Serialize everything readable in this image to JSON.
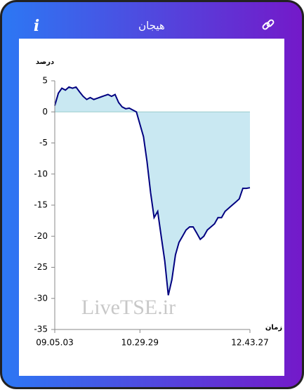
{
  "header": {
    "title": "هیجان",
    "info_icon": "i"
  },
  "chart_data": {
    "type": "area",
    "y_label": "درصد",
    "x_label": "زمان",
    "watermark": "LiveTSE.ir",
    "categories": [
      "09.05.03",
      null,
      null,
      null,
      null,
      null,
      null,
      null,
      null,
      null,
      null,
      null,
      null,
      null,
      null,
      null,
      null,
      null,
      null,
      null,
      null,
      null,
      null,
      null,
      "10.29.29",
      null,
      null,
      null,
      null,
      null,
      null,
      null,
      null,
      null,
      null,
      null,
      null,
      null,
      null,
      null,
      null,
      null,
      null,
      null,
      null,
      null,
      null,
      null,
      null,
      null,
      null,
      null,
      null,
      null,
      null,
      "12.43.27"
    ],
    "series": [
      {
        "color": "#000080",
        "fill": "#c9e8f2",
        "values": [
          1,
          3,
          3.8,
          3.5,
          4,
          3.8,
          4,
          3.2,
          2.5,
          2,
          2.3,
          2,
          2.2,
          2.4,
          2.6,
          2.8,
          2.5,
          2.8,
          1.5,
          0.8,
          0.5,
          0.6,
          0.3,
          0,
          -2,
          -4,
          -8,
          -13,
          -17,
          -16,
          -20,
          -24,
          -29.5,
          -27,
          -23,
          -21,
          -20,
          -19,
          -18.5,
          -18.5,
          -19.5,
          -20.5,
          -20,
          -19,
          -18.5,
          -18,
          -17,
          -17,
          -16,
          -15.5,
          -15,
          -14.5,
          -14,
          -12.3,
          -12.3,
          -12.2
        ]
      }
    ],
    "ylim": [
      -35,
      5
    ],
    "yticks": [
      5,
      0,
      -5,
      -10,
      -15,
      -20,
      -25,
      -30,
      -35
    ]
  }
}
